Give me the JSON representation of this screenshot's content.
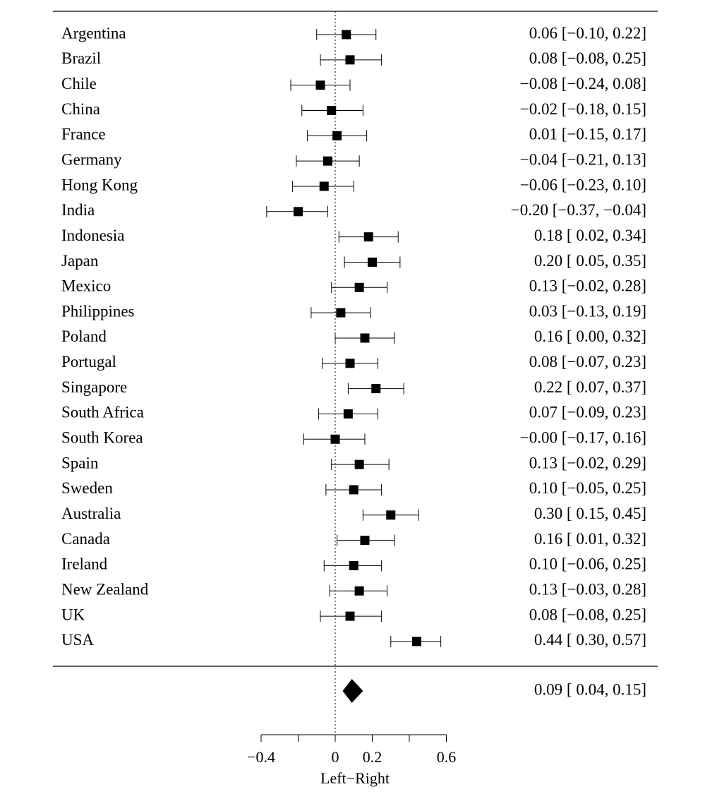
{
  "chart_data": {
    "type": "forest",
    "xlabel": "Left−Right",
    "xlim": [
      -0.4,
      0.6
    ],
    "xticks": [
      -0.4,
      -0.2,
      0,
      0.2,
      0.4,
      0.6
    ],
    "xtick_labels": [
      "−0.4",
      "",
      "0",
      "0.2",
      "",
      "0.6"
    ],
    "reference_line": 0,
    "studies": [
      {
        "label": "Argentina",
        "estimate": 0.06,
        "ci_low": -0.1,
        "ci_high": 0.22,
        "text": "0.06 [−0.10,  0.22]"
      },
      {
        "label": "Brazil",
        "estimate": 0.08,
        "ci_low": -0.08,
        "ci_high": 0.25,
        "text": "0.08 [−0.08,  0.25]"
      },
      {
        "label": "Chile",
        "estimate": -0.08,
        "ci_low": -0.24,
        "ci_high": 0.08,
        "text": "−0.08 [−0.24,  0.08]"
      },
      {
        "label": "China",
        "estimate": -0.02,
        "ci_low": -0.18,
        "ci_high": 0.15,
        "text": "−0.02 [−0.18,  0.15]"
      },
      {
        "label": "France",
        "estimate": 0.01,
        "ci_low": -0.15,
        "ci_high": 0.17,
        "text": "0.01 [−0.15,  0.17]"
      },
      {
        "label": "Germany",
        "estimate": -0.04,
        "ci_low": -0.21,
        "ci_high": 0.13,
        "text": "−0.04 [−0.21,  0.13]"
      },
      {
        "label": "Hong Kong",
        "estimate": -0.06,
        "ci_low": -0.23,
        "ci_high": 0.1,
        "text": "−0.06 [−0.23,  0.10]"
      },
      {
        "label": "India",
        "estimate": -0.2,
        "ci_low": -0.37,
        "ci_high": -0.04,
        "text": "−0.20 [−0.37, −0.04]"
      },
      {
        "label": "Indonesia",
        "estimate": 0.18,
        "ci_low": 0.02,
        "ci_high": 0.34,
        "text": "0.18 [ 0.02,  0.34]"
      },
      {
        "label": "Japan",
        "estimate": 0.2,
        "ci_low": 0.05,
        "ci_high": 0.35,
        "text": "0.20 [ 0.05,  0.35]"
      },
      {
        "label": "Mexico",
        "estimate": 0.13,
        "ci_low": -0.02,
        "ci_high": 0.28,
        "text": "0.13 [−0.02,  0.28]"
      },
      {
        "label": "Philippines",
        "estimate": 0.03,
        "ci_low": -0.13,
        "ci_high": 0.19,
        "text": "0.03 [−0.13,  0.19]"
      },
      {
        "label": "Poland",
        "estimate": 0.16,
        "ci_low": 0.0,
        "ci_high": 0.32,
        "text": "0.16 [ 0.00,  0.32]"
      },
      {
        "label": "Portugal",
        "estimate": 0.08,
        "ci_low": -0.07,
        "ci_high": 0.23,
        "text": "0.08 [−0.07,  0.23]"
      },
      {
        "label": "Singapore",
        "estimate": 0.22,
        "ci_low": 0.07,
        "ci_high": 0.37,
        "text": "0.22 [ 0.07,  0.37]"
      },
      {
        "label": "South Africa",
        "estimate": 0.07,
        "ci_low": -0.09,
        "ci_high": 0.23,
        "text": "0.07 [−0.09,  0.23]"
      },
      {
        "label": "South Korea",
        "estimate": -0.0,
        "ci_low": -0.17,
        "ci_high": 0.16,
        "text": "−0.00 [−0.17,  0.16]"
      },
      {
        "label": "Spain",
        "estimate": 0.13,
        "ci_low": -0.02,
        "ci_high": 0.29,
        "text": "0.13 [−0.02,  0.29]"
      },
      {
        "label": "Sweden",
        "estimate": 0.1,
        "ci_low": -0.05,
        "ci_high": 0.25,
        "text": "0.10 [−0.05,  0.25]"
      },
      {
        "label": "Australia",
        "estimate": 0.3,
        "ci_low": 0.15,
        "ci_high": 0.45,
        "text": "0.30 [ 0.15,  0.45]"
      },
      {
        "label": "Canada",
        "estimate": 0.16,
        "ci_low": 0.01,
        "ci_high": 0.32,
        "text": "0.16 [ 0.01,  0.32]"
      },
      {
        "label": "Ireland",
        "estimate": 0.1,
        "ci_low": -0.06,
        "ci_high": 0.25,
        "text": "0.10 [−0.06,  0.25]"
      },
      {
        "label": "New Zealand",
        "estimate": 0.13,
        "ci_low": -0.03,
        "ci_high": 0.28,
        "text": "0.13 [−0.03,  0.28]"
      },
      {
        "label": "UK",
        "estimate": 0.08,
        "ci_low": -0.08,
        "ci_high": 0.25,
        "text": "0.08 [−0.08,  0.25]"
      },
      {
        "label": "USA",
        "estimate": 0.44,
        "ci_low": 0.3,
        "ci_high": 0.57,
        "text": "0.44 [ 0.30,  0.57]"
      }
    ],
    "summary": {
      "estimate": 0.09,
      "ci_low": 0.04,
      "ci_high": 0.15,
      "text": "0.09 [ 0.04,  0.15]"
    },
    "colors": {
      "foreground": "#000000",
      "background": "#ffffff"
    }
  }
}
